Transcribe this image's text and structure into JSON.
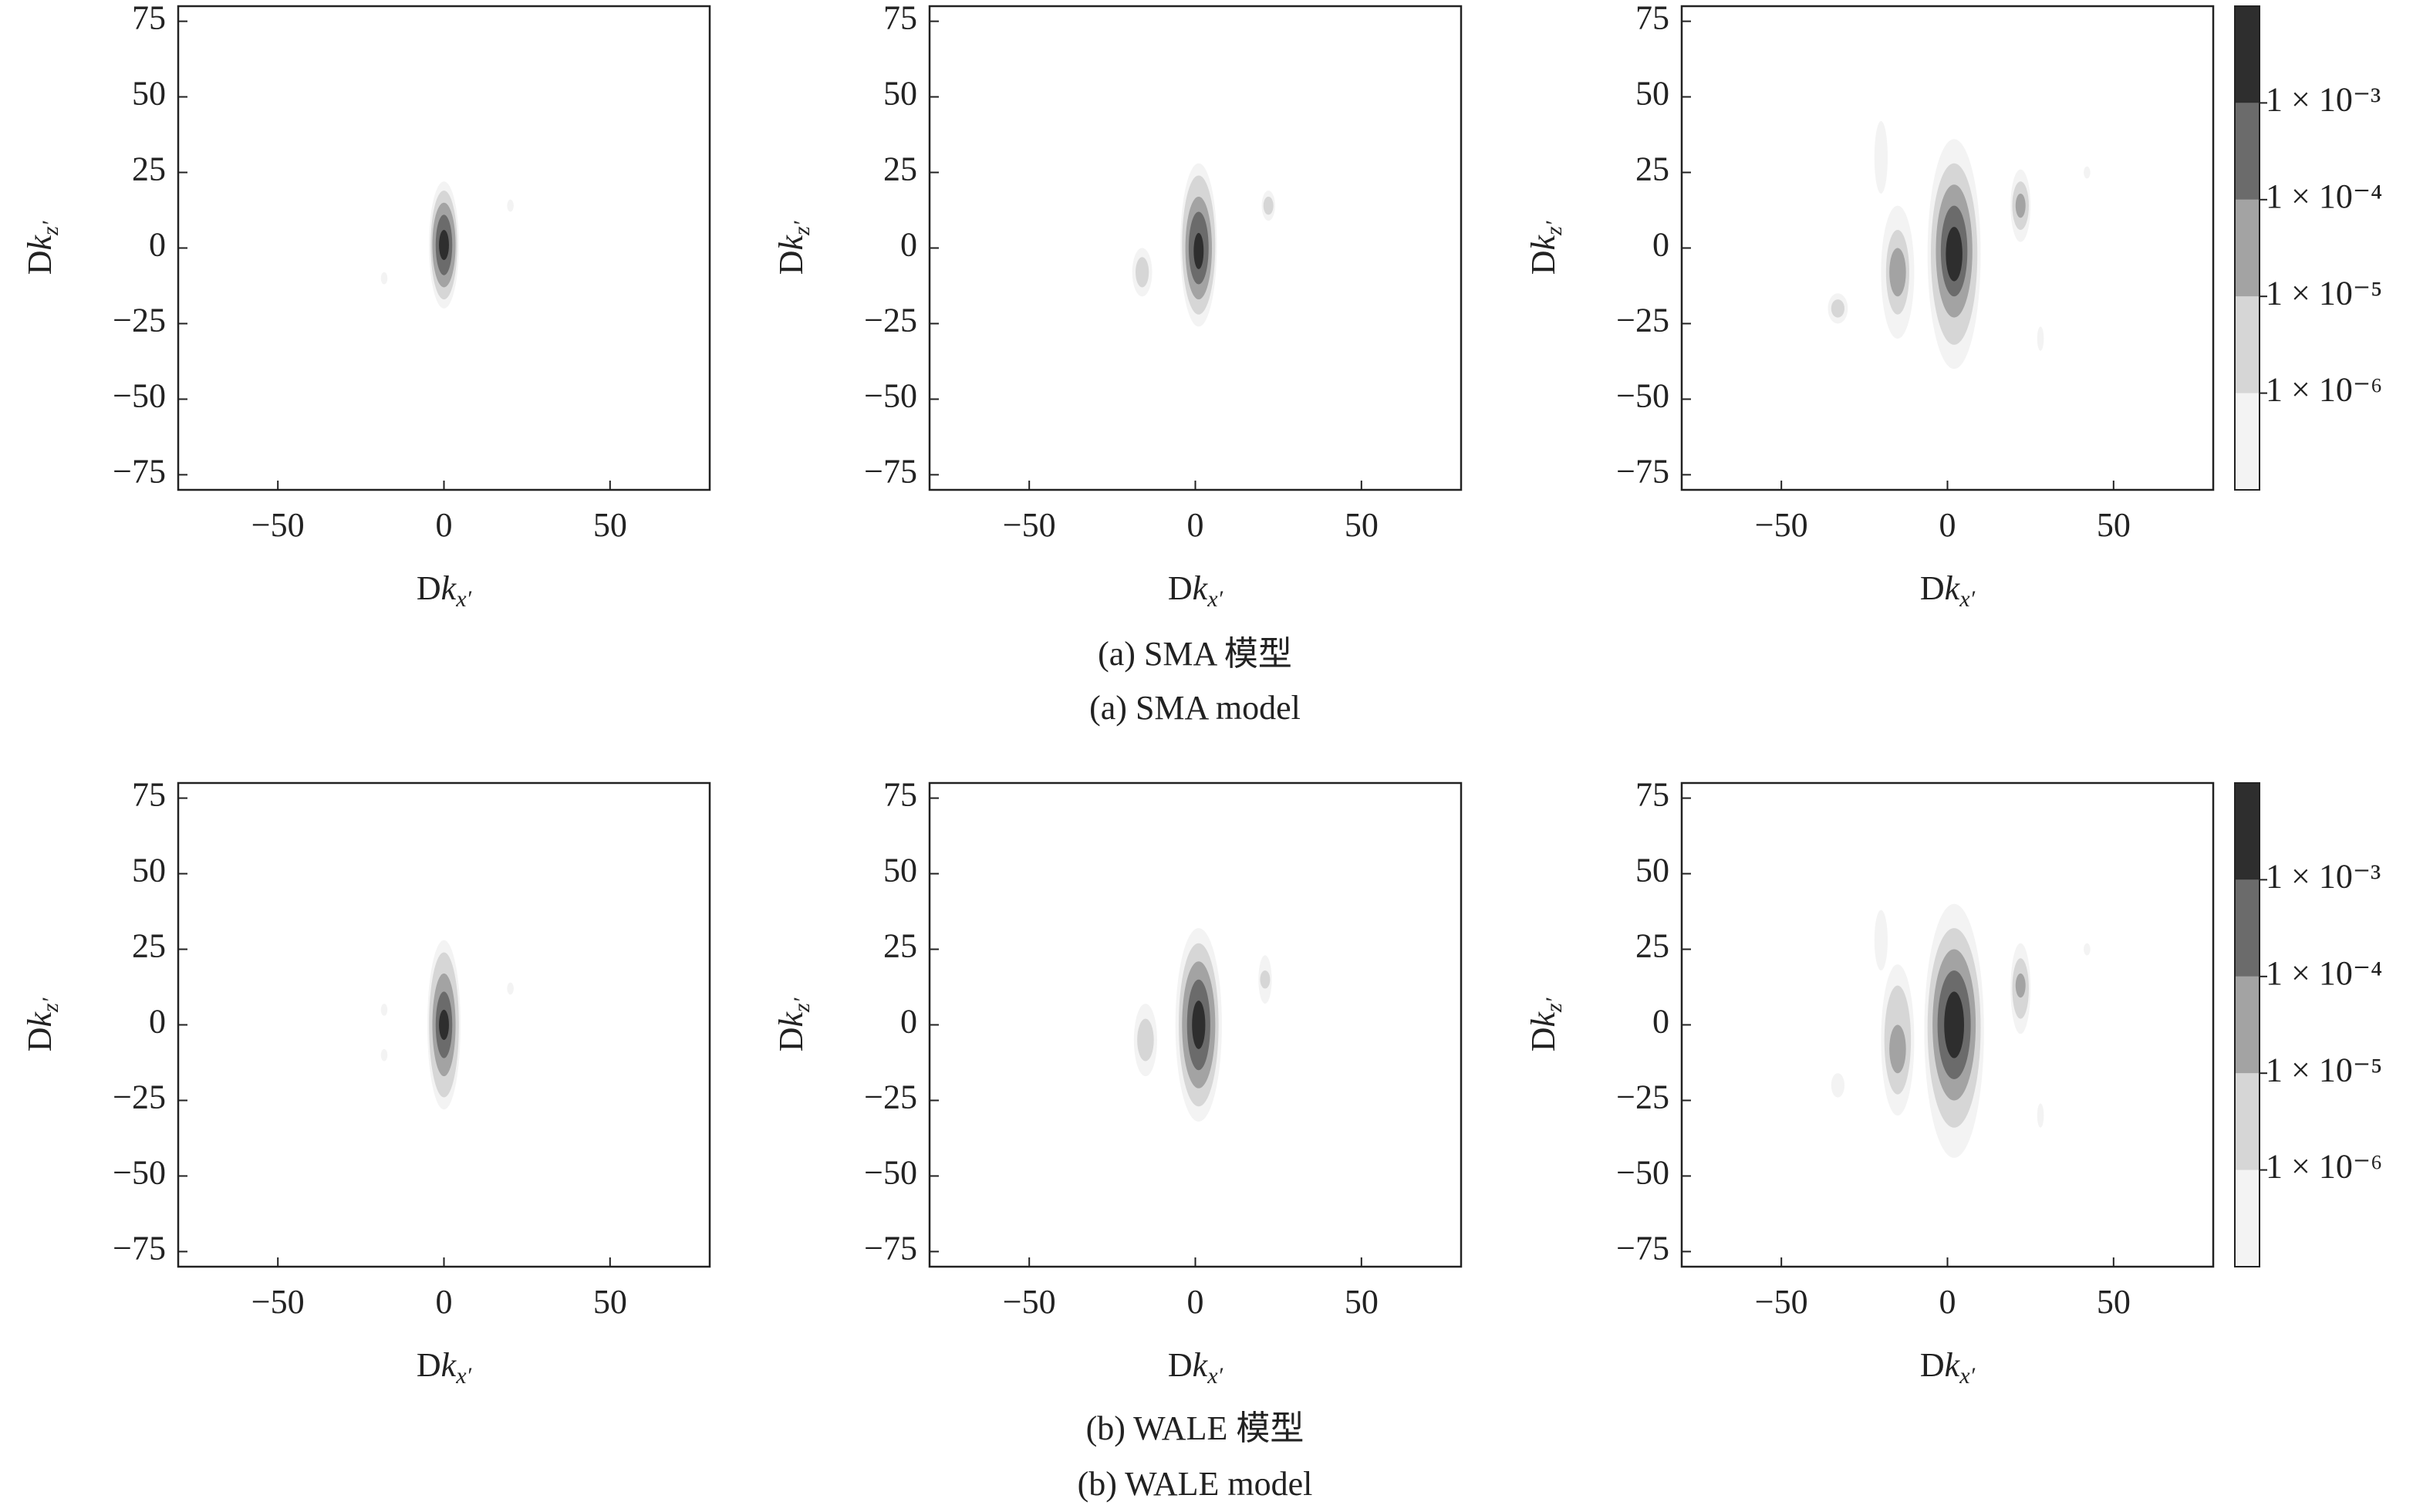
{
  "chart_data": [
    {
      "type": "contour",
      "xlim": [
        -80,
        80
      ],
      "ylim": [
        -80,
        80
      ],
      "xticks": [
        {
          "value": -50,
          "label": "−50"
        },
        0,
        50
      ],
      "yticks": [
        {
          "value": -75,
          "label": "−75"
        },
        {
          "value": -50,
          "label": "−50"
        },
        {
          "value": -25,
          "label": "−25"
        },
        0,
        25,
        50,
        75
      ],
      "xlabel": [
        "D",
        "k",
        "x′"
      ],
      "ylabel": [
        "D",
        "k",
        "z′"
      ],
      "colorbar": false,
      "blobs": [
        {
          "x": 0,
          "y": 1,
          "rx": 4.5,
          "ry": 21,
          "level": 1e-07
        },
        {
          "x": 0,
          "y": 1,
          "rx": 4,
          "ry": 18,
          "level": 1e-06
        },
        {
          "x": 0,
          "y": 1,
          "rx": 3.5,
          "ry": 14,
          "level": 1e-05
        },
        {
          "x": 0,
          "y": 1,
          "rx": 2.5,
          "ry": 10,
          "level": 0.0001
        },
        {
          "x": 0,
          "y": 1,
          "rx": 1.5,
          "ry": 5,
          "level": 0.001
        },
        {
          "x": -18,
          "y": -10,
          "rx": 1,
          "ry": 2,
          "level": 1e-07
        },
        {
          "x": 20,
          "y": 14,
          "rx": 1,
          "ry": 2,
          "level": 1e-07
        }
      ]
    },
    {
      "type": "contour",
      "xlim": [
        -80,
        80
      ],
      "ylim": [
        -80,
        80
      ],
      "xticks": [
        {
          "value": -50,
          "label": "−50"
        },
        0,
        50
      ],
      "yticks": [
        {
          "value": -75,
          "label": "−75"
        },
        {
          "value": -50,
          "label": "−50"
        },
        {
          "value": -25,
          "label": "−25"
        },
        0,
        25,
        50,
        75
      ],
      "xlabel": [
        "D",
        "k",
        "x′"
      ],
      "ylabel": [
        "D",
        "k",
        "z′"
      ],
      "colorbar": false,
      "blobs": [
        {
          "x": 1,
          "y": 1,
          "rx": 5.5,
          "ry": 27,
          "level": 1e-07
        },
        {
          "x": 1,
          "y": 1,
          "rx": 5,
          "ry": 23,
          "level": 1e-06
        },
        {
          "x": 1,
          "y": 0,
          "rx": 4,
          "ry": 17,
          "level": 1e-05
        },
        {
          "x": 1,
          "y": 0,
          "rx": 3,
          "ry": 12,
          "level": 0.0001
        },
        {
          "x": 1,
          "y": -1,
          "rx": 1.5,
          "ry": 6,
          "level": 0.001
        },
        {
          "x": -16,
          "y": -8,
          "rx": 3,
          "ry": 8,
          "level": 1e-07
        },
        {
          "x": -16,
          "y": -8,
          "rx": 2,
          "ry": 5,
          "level": 1e-06
        },
        {
          "x": 22,
          "y": 14,
          "rx": 2,
          "ry": 5,
          "level": 1e-07
        },
        {
          "x": 22,
          "y": 14,
          "rx": 1.5,
          "ry": 3,
          "level": 1e-06
        }
      ]
    },
    {
      "type": "contour",
      "xlim": [
        -80,
        80
      ],
      "ylim": [
        -80,
        80
      ],
      "xticks": [
        {
          "value": -50,
          "label": "−50"
        },
        0,
        50
      ],
      "yticks": [
        {
          "value": -75,
          "label": "−75"
        },
        {
          "value": -50,
          "label": "−50"
        },
        {
          "value": -25,
          "label": "−25"
        },
        0,
        25,
        50,
        75
      ],
      "xlabel": [
        "D",
        "k",
        "x′"
      ],
      "ylabel": [
        "D",
        "k",
        "z′"
      ],
      "colorbar": true,
      "blobs": [
        {
          "x": -20,
          "y": 30,
          "rx": 2,
          "ry": 12,
          "level": 1e-07
        },
        {
          "x": 28,
          "y": -30,
          "rx": 1,
          "ry": 4,
          "level": 1e-07
        },
        {
          "x": 42,
          "y": 25,
          "rx": 1,
          "ry": 2,
          "level": 1e-07
        },
        {
          "x": 2,
          "y": -2,
          "rx": 8,
          "ry": 38,
          "level": 1e-07
        },
        {
          "x": 2,
          "y": -2,
          "rx": 7,
          "ry": 30,
          "level": 1e-06
        },
        {
          "x": 2,
          "y": -1,
          "rx": 5.5,
          "ry": 22,
          "level": 1e-05
        },
        {
          "x": 2,
          "y": -1,
          "rx": 4,
          "ry": 15,
          "level": 0.0001
        },
        {
          "x": 2,
          "y": -2,
          "rx": 2.5,
          "ry": 9,
          "level": 0.001
        },
        {
          "x": -15,
          "y": -8,
          "rx": 5,
          "ry": 22,
          "level": 1e-07
        },
        {
          "x": -15,
          "y": -8,
          "rx": 3.5,
          "ry": 14,
          "level": 1e-06
        },
        {
          "x": -15,
          "y": -8,
          "rx": 2.5,
          "ry": 8,
          "level": 1e-05
        },
        {
          "x": -33,
          "y": -20,
          "rx": 3,
          "ry": 5,
          "level": 1e-07
        },
        {
          "x": -33,
          "y": -20,
          "rx": 2,
          "ry": 3,
          "level": 1e-06
        },
        {
          "x": 22,
          "y": 14,
          "rx": 3,
          "ry": 12,
          "level": 1e-07
        },
        {
          "x": 22,
          "y": 14,
          "rx": 2.5,
          "ry": 8,
          "level": 1e-06
        },
        {
          "x": 22,
          "y": 14,
          "rx": 1.5,
          "ry": 4,
          "level": 1e-05
        }
      ]
    },
    {
      "type": "contour",
      "xlim": [
        -80,
        80
      ],
      "ylim": [
        -80,
        80
      ],
      "xticks": [
        {
          "value": -50,
          "label": "−50"
        },
        0,
        50
      ],
      "yticks": [
        {
          "value": -75,
          "label": "−75"
        },
        {
          "value": -50,
          "label": "−50"
        },
        {
          "value": -25,
          "label": "−25"
        },
        0,
        25,
        50,
        75
      ],
      "xlabel": [
        "D",
        "k",
        "x′"
      ],
      "ylabel": [
        "D",
        "k",
        "z′"
      ],
      "colorbar": false,
      "blobs": [
        {
          "x": 0,
          "y": 0,
          "rx": 5,
          "ry": 28,
          "level": 1e-07
        },
        {
          "x": 0,
          "y": 0,
          "rx": 4.5,
          "ry": 24,
          "level": 1e-06
        },
        {
          "x": 0,
          "y": 0,
          "rx": 3.5,
          "ry": 17,
          "level": 1e-05
        },
        {
          "x": 0,
          "y": 0,
          "rx": 2.5,
          "ry": 11,
          "level": 0.0001
        },
        {
          "x": 0,
          "y": 0,
          "rx": 1.5,
          "ry": 5,
          "level": 0.001
        },
        {
          "x": -18,
          "y": -10,
          "rx": 1,
          "ry": 2,
          "level": 1e-07
        },
        {
          "x": -18,
          "y": 5,
          "rx": 1,
          "ry": 2,
          "level": 1e-07
        },
        {
          "x": 20,
          "y": 12,
          "rx": 1,
          "ry": 2,
          "level": 1e-07
        }
      ]
    },
    {
      "type": "contour",
      "xlim": [
        -80,
        80
      ],
      "ylim": [
        -80,
        80
      ],
      "xticks": [
        {
          "value": -50,
          "label": "−50"
        },
        0,
        50
      ],
      "yticks": [
        {
          "value": -75,
          "label": "−75"
        },
        {
          "value": -50,
          "label": "−50"
        },
        {
          "value": -25,
          "label": "−25"
        },
        0,
        25,
        50,
        75
      ],
      "xlabel": [
        "D",
        "k",
        "x′"
      ],
      "ylabel": [
        "D",
        "k",
        "z′"
      ],
      "colorbar": false,
      "blobs": [
        {
          "x": 1,
          "y": 0,
          "rx": 7,
          "ry": 32,
          "level": 1e-07
        },
        {
          "x": 1,
          "y": 0,
          "rx": 6,
          "ry": 27,
          "level": 1e-06
        },
        {
          "x": 1,
          "y": 0,
          "rx": 5,
          "ry": 21,
          "level": 1e-05
        },
        {
          "x": 1,
          "y": 0,
          "rx": 3.5,
          "ry": 15,
          "level": 0.0001
        },
        {
          "x": 1,
          "y": 0,
          "rx": 2,
          "ry": 8,
          "level": 0.001
        },
        {
          "x": -15,
          "y": -5,
          "rx": 3.5,
          "ry": 12,
          "level": 1e-07
        },
        {
          "x": -15,
          "y": -5,
          "rx": 2.5,
          "ry": 7,
          "level": 1e-06
        },
        {
          "x": 21,
          "y": 15,
          "rx": 2,
          "ry": 8,
          "level": 1e-07
        },
        {
          "x": 21,
          "y": 15,
          "rx": 1.5,
          "ry": 3,
          "level": 1e-06
        }
      ]
    },
    {
      "type": "contour",
      "xlim": [
        -80,
        80
      ],
      "ylim": [
        -80,
        80
      ],
      "xticks": [
        {
          "value": -50,
          "label": "−50"
        },
        0,
        50
      ],
      "yticks": [
        {
          "value": -75,
          "label": "−75"
        },
        {
          "value": -50,
          "label": "−50"
        },
        {
          "value": -25,
          "label": "−25"
        },
        0,
        25,
        50,
        75
      ],
      "xlabel": [
        "D",
        "k",
        "x′"
      ],
      "ylabel": [
        "D",
        "k",
        "z′"
      ],
      "colorbar": true,
      "blobs": [
        {
          "x": -20,
          "y": 28,
          "rx": 2,
          "ry": 10,
          "level": 1e-07
        },
        {
          "x": 28,
          "y": -30,
          "rx": 1,
          "ry": 4,
          "level": 1e-07
        },
        {
          "x": 42,
          "y": 25,
          "rx": 1,
          "ry": 2,
          "level": 1e-07
        },
        {
          "x": 2,
          "y": -2,
          "rx": 9,
          "ry": 42,
          "level": 1e-07
        },
        {
          "x": 2,
          "y": -1,
          "rx": 8,
          "ry": 33,
          "level": 1e-06
        },
        {
          "x": 2,
          "y": 0,
          "rx": 6.5,
          "ry": 25,
          "level": 1e-05
        },
        {
          "x": 2,
          "y": 0,
          "rx": 5,
          "ry": 18,
          "level": 0.0001
        },
        {
          "x": 2,
          "y": 0,
          "rx": 3,
          "ry": 11,
          "level": 0.001
        },
        {
          "x": -15,
          "y": -5,
          "rx": 5,
          "ry": 25,
          "level": 1e-07
        },
        {
          "x": -15,
          "y": -5,
          "rx": 4,
          "ry": 18,
          "level": 1e-06
        },
        {
          "x": -15,
          "y": -8,
          "rx": 2.5,
          "ry": 8,
          "level": 1e-05
        },
        {
          "x": -33,
          "y": -20,
          "rx": 2,
          "ry": 4,
          "level": 1e-07
        },
        {
          "x": 22,
          "y": 12,
          "rx": 3,
          "ry": 15,
          "level": 1e-07
        },
        {
          "x": 22,
          "y": 12,
          "rx": 2.5,
          "ry": 10,
          "level": 1e-06
        },
        {
          "x": 22,
          "y": 13,
          "rx": 1.5,
          "ry": 4,
          "level": 1e-05
        }
      ]
    }
  ],
  "colorbar": {
    "log": true,
    "levels": [
      1e-07,
      1e-06,
      1e-05,
      0.0001,
      0.001,
      0.01
    ],
    "colors": [
      "#f3f3f3",
      "#d6d6d6",
      "#a3a3a3",
      "#6b6b6b",
      "#2e2e2e"
    ],
    "ticks": [
      {
        "value": 1e-06,
        "label": "1 × 10⁻⁶"
      },
      {
        "value": 1e-05,
        "label": "1 × 10⁻⁵"
      },
      {
        "value": 0.0001,
        "label": "1 × 10⁻⁴"
      },
      {
        "value": 0.001,
        "label": "1 × 10⁻³"
      }
    ]
  },
  "captions": [
    {
      "cn": "(a) SMA 模型",
      "en": "(a) SMA model"
    },
    {
      "cn": "(b) WALE 模型",
      "en": "(b) WALE model"
    }
  ]
}
